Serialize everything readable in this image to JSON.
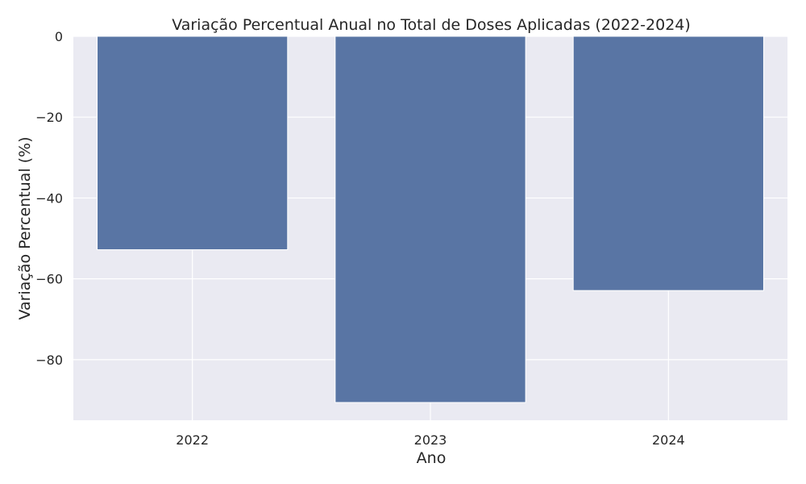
{
  "chart_data": {
    "type": "bar",
    "title": "Variação Percentual Anual no Total de Doses Aplicadas (2022-2024)",
    "xlabel": "Ano",
    "ylabel": "Variação Percentual (%)",
    "categories": [
      "2022",
      "2023",
      "2024"
    ],
    "values": [
      -52.8,
      -90.6,
      -62.9
    ],
    "ylim": [
      -95,
      0
    ],
    "yticks": [
      0,
      -20,
      -40,
      -60,
      -80
    ],
    "ytick_labels": [
      "0",
      "−20",
      "−40",
      "−60",
      "−80"
    ],
    "grid": true,
    "legend": "none",
    "colors": {
      "bar": "#5975a4",
      "background": "#eaeaf2",
      "grid": "#ffffff",
      "text": "#262626"
    }
  }
}
